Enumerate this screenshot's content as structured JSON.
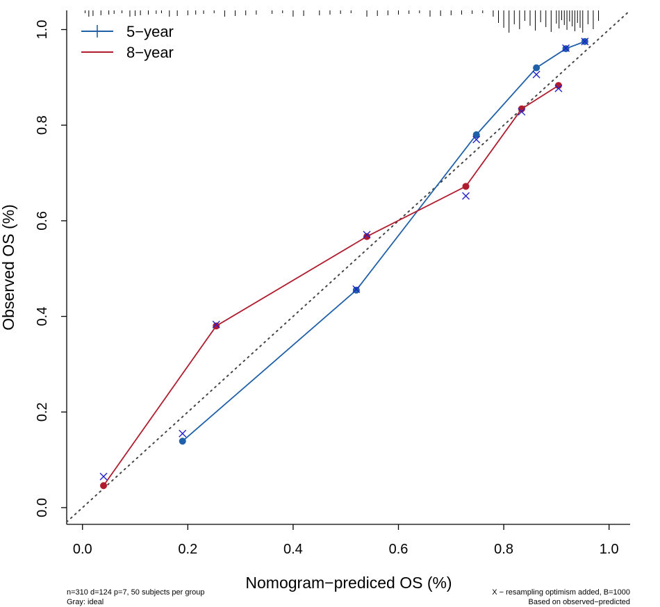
{
  "chart_data": {
    "type": "line",
    "title": "",
    "xlabel": "Nomogram−prediced OS (%)",
    "ylabel": "Observed OS (%)",
    "xlim": [
      -0.03,
      1.04
    ],
    "ylim": [
      -0.035,
      1.04
    ],
    "x_ticks": [
      "0.0",
      "0.2",
      "0.4",
      "0.6",
      "0.8",
      "1.0"
    ],
    "y_ticks": [
      "0.0",
      "0.2",
      "0.4",
      "0.6",
      "0.8",
      "1.0"
    ],
    "grid": false,
    "legend_position": "top-left",
    "ideal_line": {
      "from": [
        -0.03,
        -0.03
      ],
      "to": [
        1.04,
        1.04
      ],
      "color": "#444444"
    },
    "series": [
      {
        "name": "5−year",
        "color": "#2060a8",
        "x": [
          0.19,
          0.52,
          0.748,
          0.862,
          0.918,
          0.954
        ],
        "y": [
          0.139,
          0.455,
          0.78,
          0.92,
          0.96,
          0.975
        ],
        "corrected_x": [
          0.19,
          0.52,
          0.748,
          0.862,
          0.918,
          0.954
        ],
        "corrected_y": [
          0.155,
          0.457,
          0.77,
          0.906,
          0.961,
          0.975
        ]
      },
      {
        "name": "8−year",
        "color": "#b01c2e",
        "x": [
          0.04,
          0.254,
          0.54,
          0.728,
          0.834,
          0.904
        ],
        "y": [
          0.046,
          0.38,
          0.567,
          0.672,
          0.834,
          0.883
        ],
        "corrected_x": [
          0.04,
          0.254,
          0.54,
          0.728,
          0.834,
          0.904
        ],
        "corrected_y": [
          0.065,
          0.383,
          0.571,
          0.652,
          0.828,
          0.877
        ]
      }
    ],
    "corrected_marker_color": "#2222cc",
    "rug": [
      0.005,
      0.012,
      0.02,
      0.035,
      0.05,
      0.06,
      0.075,
      0.09,
      0.1,
      0.11,
      0.125,
      0.14,
      0.15,
      0.165,
      0.18,
      0.2,
      0.215,
      0.23,
      0.25,
      0.27,
      0.29,
      0.31,
      0.33,
      0.36,
      0.38,
      0.4,
      0.42,
      0.45,
      0.47,
      0.49,
      0.51,
      0.54,
      0.56,
      0.58,
      0.6,
      0.62,
      0.64,
      0.66,
      0.68,
      0.7,
      0.72,
      0.74,
      0.76,
      0.78,
      0.79,
      0.8,
      0.81,
      0.82,
      0.83,
      0.84,
      0.85,
      0.86,
      0.87,
      0.88,
      0.89,
      0.9,
      0.905,
      0.91,
      0.915,
      0.92,
      0.925,
      0.93,
      0.935,
      0.94,
      0.945,
      0.95,
      0.96,
      0.97,
      0.98
    ],
    "footnote_left": [
      "n=310 d=124 p=7, 50 subjects per group",
      "Gray: ideal"
    ],
    "footnote_right": [
      "X − resampling optimism added, B=1000",
      "Based on observed−predicted"
    ]
  }
}
